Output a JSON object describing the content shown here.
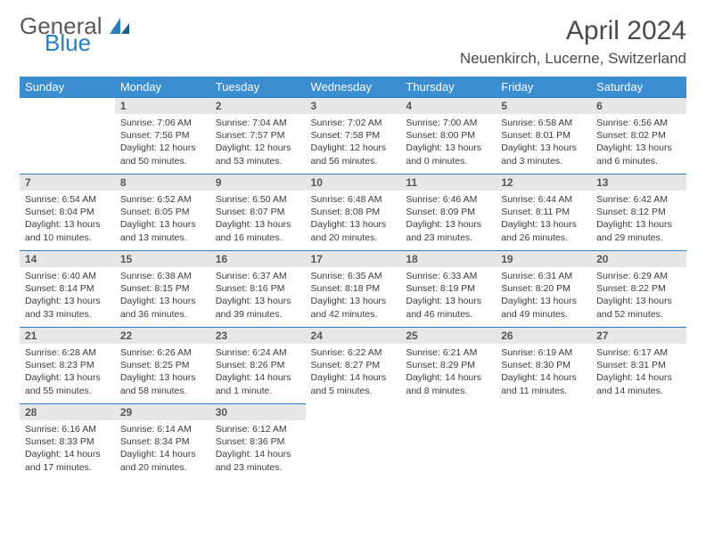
{
  "brand": {
    "line1": "General",
    "line2": "Blue"
  },
  "title": "April 2024",
  "location": "Neuenkirch, Lucerne, Switzerland",
  "weekdays": [
    "Sunday",
    "Monday",
    "Tuesday",
    "Wednesday",
    "Thursday",
    "Friday",
    "Saturday"
  ],
  "colors": {
    "header_bg": "#3a8dce",
    "header_fg": "#ffffff",
    "rule": "#2a7fbf",
    "daynum_bg": "#e7e7e7",
    "text": "#3a3a3a",
    "brand_gray": "#5a5a5a",
    "brand_blue": "#2a7fbf"
  },
  "layout": {
    "start_weekday": 1,
    "days_in_month": 30
  },
  "days": {
    "1": {
      "sunrise": "7:06 AM",
      "sunset": "7:56 PM",
      "daylight": "12 hours and 50 minutes."
    },
    "2": {
      "sunrise": "7:04 AM",
      "sunset": "7:57 PM",
      "daylight": "12 hours and 53 minutes."
    },
    "3": {
      "sunrise": "7:02 AM",
      "sunset": "7:58 PM",
      "daylight": "12 hours and 56 minutes."
    },
    "4": {
      "sunrise": "7:00 AM",
      "sunset": "8:00 PM",
      "daylight": "13 hours and 0 minutes."
    },
    "5": {
      "sunrise": "6:58 AM",
      "sunset": "8:01 PM",
      "daylight": "13 hours and 3 minutes."
    },
    "6": {
      "sunrise": "6:56 AM",
      "sunset": "8:02 PM",
      "daylight": "13 hours and 6 minutes."
    },
    "7": {
      "sunrise": "6:54 AM",
      "sunset": "8:04 PM",
      "daylight": "13 hours and 10 minutes."
    },
    "8": {
      "sunrise": "6:52 AM",
      "sunset": "8:05 PM",
      "daylight": "13 hours and 13 minutes."
    },
    "9": {
      "sunrise": "6:50 AM",
      "sunset": "8:07 PM",
      "daylight": "13 hours and 16 minutes."
    },
    "10": {
      "sunrise": "6:48 AM",
      "sunset": "8:08 PM",
      "daylight": "13 hours and 20 minutes."
    },
    "11": {
      "sunrise": "6:46 AM",
      "sunset": "8:09 PM",
      "daylight": "13 hours and 23 minutes."
    },
    "12": {
      "sunrise": "6:44 AM",
      "sunset": "8:11 PM",
      "daylight": "13 hours and 26 minutes."
    },
    "13": {
      "sunrise": "6:42 AM",
      "sunset": "8:12 PM",
      "daylight": "13 hours and 29 minutes."
    },
    "14": {
      "sunrise": "6:40 AM",
      "sunset": "8:14 PM",
      "daylight": "13 hours and 33 minutes."
    },
    "15": {
      "sunrise": "6:38 AM",
      "sunset": "8:15 PM",
      "daylight": "13 hours and 36 minutes."
    },
    "16": {
      "sunrise": "6:37 AM",
      "sunset": "8:16 PM",
      "daylight": "13 hours and 39 minutes."
    },
    "17": {
      "sunrise": "6:35 AM",
      "sunset": "8:18 PM",
      "daylight": "13 hours and 42 minutes."
    },
    "18": {
      "sunrise": "6:33 AM",
      "sunset": "8:19 PM",
      "daylight": "13 hours and 46 minutes."
    },
    "19": {
      "sunrise": "6:31 AM",
      "sunset": "8:20 PM",
      "daylight": "13 hours and 49 minutes."
    },
    "20": {
      "sunrise": "6:29 AM",
      "sunset": "8:22 PM",
      "daylight": "13 hours and 52 minutes."
    },
    "21": {
      "sunrise": "6:28 AM",
      "sunset": "8:23 PM",
      "daylight": "13 hours and 55 minutes."
    },
    "22": {
      "sunrise": "6:26 AM",
      "sunset": "8:25 PM",
      "daylight": "13 hours and 58 minutes."
    },
    "23": {
      "sunrise": "6:24 AM",
      "sunset": "8:26 PM",
      "daylight": "14 hours and 1 minute."
    },
    "24": {
      "sunrise": "6:22 AM",
      "sunset": "8:27 PM",
      "daylight": "14 hours and 5 minutes."
    },
    "25": {
      "sunrise": "6:21 AM",
      "sunset": "8:29 PM",
      "daylight": "14 hours and 8 minutes."
    },
    "26": {
      "sunrise": "6:19 AM",
      "sunset": "8:30 PM",
      "daylight": "14 hours and 11 minutes."
    },
    "27": {
      "sunrise": "6:17 AM",
      "sunset": "8:31 PM",
      "daylight": "14 hours and 14 minutes."
    },
    "28": {
      "sunrise": "6:16 AM",
      "sunset": "8:33 PM",
      "daylight": "14 hours and 17 minutes."
    },
    "29": {
      "sunrise": "6:14 AM",
      "sunset": "8:34 PM",
      "daylight": "14 hours and 20 minutes."
    },
    "30": {
      "sunrise": "6:12 AM",
      "sunset": "8:36 PM",
      "daylight": "14 hours and 23 minutes."
    }
  },
  "labels": {
    "sunrise": "Sunrise:",
    "sunset": "Sunset:",
    "daylight": "Daylight:"
  }
}
